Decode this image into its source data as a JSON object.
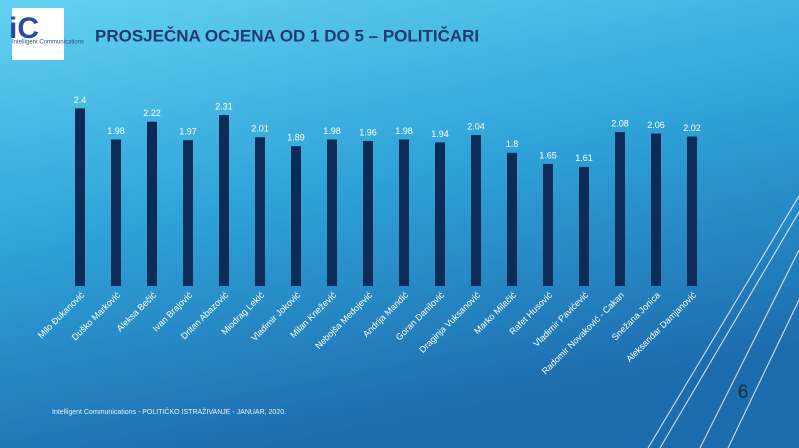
{
  "logo": {
    "mark": "iC",
    "text": "Intelligent Communications"
  },
  "chart_data": {
    "type": "bar",
    "title": "PROSJEČNA OCJENA OD 1 DO 5 – POLITIČARI",
    "categories": [
      "Milo Đukanović",
      "Duško Marković",
      "Aleksa Bečić",
      "Ivan Brajović",
      "Dritan Abazović",
      "Miodrag Lekić",
      "Vladimir Joković",
      "Milan Knežević",
      "Nebojša Medojević",
      "Andrija Mandić",
      "Goran Danilović",
      "Draginja Vuksanović",
      "Marko Milačić",
      "Rafet Husović",
      "Vladimir Pavićević",
      "Radomir Novaković - Cakan",
      "Snežana Jonica",
      "Aleksandar Damjanović"
    ],
    "values": [
      2.4,
      1.98,
      2.22,
      1.97,
      2.31,
      2.01,
      1.89,
      1.98,
      1.96,
      1.98,
      1.94,
      2.04,
      1.8,
      1.65,
      1.61,
      2.08,
      2.06,
      2.02
    ],
    "color": "#0c2b58",
    "ylim": [
      0,
      2.5
    ]
  },
  "footer": "Intelligent Communications - POLITIČKO ISTRAŽIVANJE - JANUAR, 2020.",
  "page_number": "6"
}
